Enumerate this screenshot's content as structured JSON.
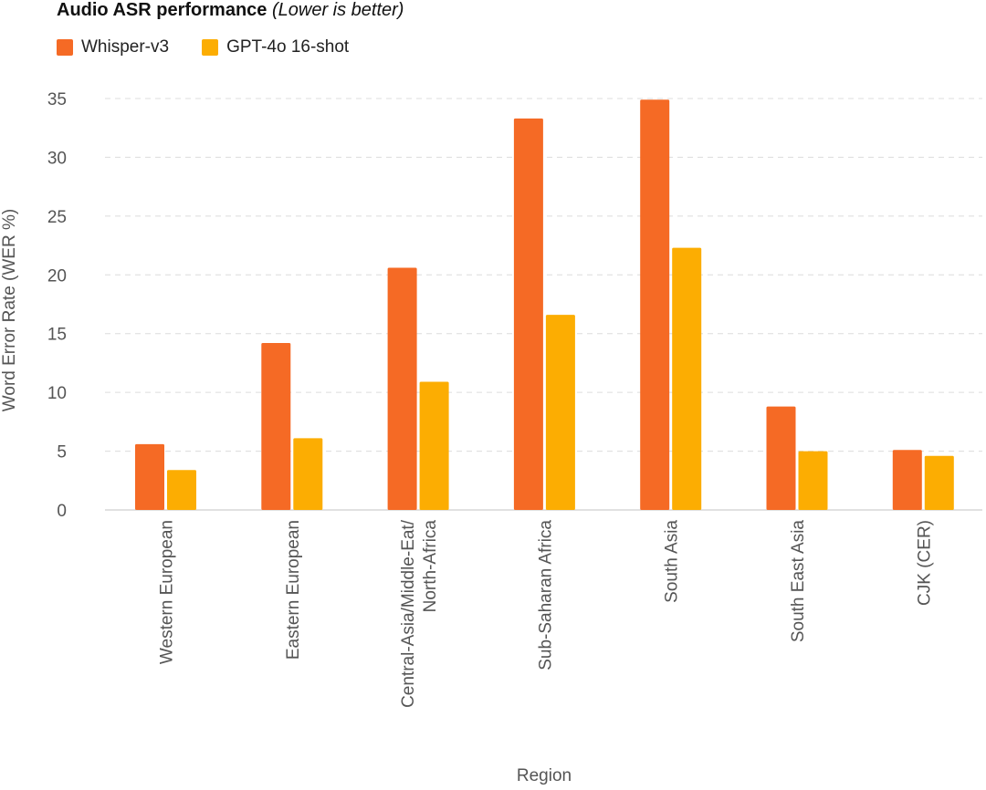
{
  "chart_data": {
    "type": "bar",
    "title": "Audio ASR performance",
    "subtitle": "(Lower is better)",
    "xlabel": "Region",
    "ylabel": "Word Error Rate (WER %)",
    "ylim": [
      0,
      35
    ],
    "yticks": [
      0,
      5,
      10,
      15,
      20,
      25,
      30,
      35
    ],
    "grid": true,
    "legend_position": "top-left",
    "categories": [
      "Western European",
      "Eastern European",
      "Central-Asia/Middle-Eat/\nNorth-Africa",
      "Sub-Saharan Africa",
      "South Asia",
      "South East Asia",
      "CJK (CER)"
    ],
    "series": [
      {
        "name": "Whisper-v3",
        "color": "#f56a25",
        "values": [
          5.6,
          14.2,
          20.6,
          33.3,
          34.9,
          8.8,
          5.1
        ]
      },
      {
        "name": "GPT-4o 16-shot",
        "color": "#fcad02",
        "values": [
          3.4,
          6.1,
          10.9,
          16.6,
          22.3,
          5.0,
          4.6
        ]
      }
    ]
  }
}
